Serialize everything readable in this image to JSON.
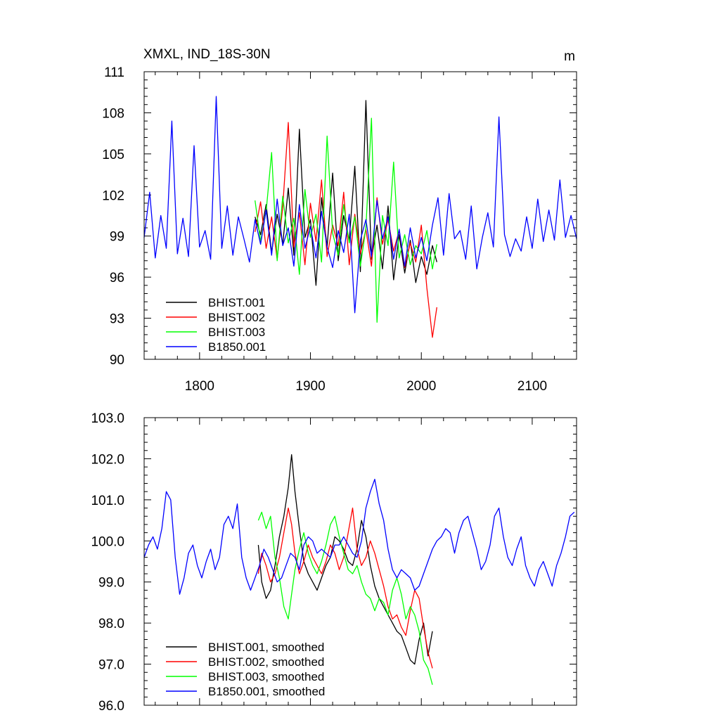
{
  "chart_data": [
    {
      "type": "line",
      "title": "XMXL, IND_18S-30N",
      "units": "m",
      "xlim": [
        1750,
        2140
      ],
      "ylim": [
        90,
        111
      ],
      "xticks": [
        1800,
        1900,
        2000,
        2100
      ],
      "xtick_labels": [
        "1800",
        "1900",
        "2000",
        "2100"
      ],
      "yticks": [
        90,
        93,
        96,
        99,
        102,
        105,
        108,
        111
      ],
      "ytick_labels": [
        "90",
        "93",
        "96",
        "99",
        "102",
        "105",
        "108",
        "111"
      ],
      "legend": {
        "placement": "bottom-left"
      },
      "series": [
        {
          "name": "BHIST.001",
          "color": "#000000",
          "x": [
            1850,
            1855,
            1860,
            1865,
            1870,
            1875,
            1880,
            1885,
            1890,
            1895,
            1900,
            1905,
            1910,
            1915,
            1920,
            1925,
            1930,
            1935,
            1940,
            1945,
            1950,
            1955,
            1960,
            1965,
            1970,
            1975,
            1980,
            1985,
            1990,
            1995,
            2000,
            2005,
            2010,
            2014
          ],
          "y": [
            100.4,
            99.1,
            101.3,
            97.8,
            100.6,
            98.4,
            102.5,
            97.6,
            106.8,
            98.9,
            100.2,
            95.4,
            101.8,
            98.2,
            103.6,
            97.2,
            100.5,
            98.7,
            104.1,
            96.4,
            108.9,
            97.3,
            99.8,
            96.6,
            101.2,
            95.8,
            99.1,
            96.3,
            98.7,
            95.6,
            97.5,
            96.2,
            98.3,
            97.1
          ]
        },
        {
          "name": "BHIST.002",
          "color": "#ff0000",
          "x": [
            1850,
            1855,
            1860,
            1865,
            1870,
            1875,
            1880,
            1885,
            1890,
            1895,
            1900,
            1905,
            1910,
            1915,
            1920,
            1925,
            1930,
            1935,
            1940,
            1945,
            1950,
            1955,
            1960,
            1965,
            1970,
            1975,
            1980,
            1985,
            1990,
            1995,
            2000,
            2005,
            2010,
            2014
          ],
          "y": [
            99.3,
            101.5,
            98.1,
            100.4,
            97.3,
            101.1,
            107.3,
            98.2,
            100.7,
            96.9,
            101.4,
            98.6,
            103.1,
            97.5,
            99.8,
            98.3,
            102.2,
            96.9,
            100.6,
            97.7,
            99.5,
            96.8,
            101.8,
            98.4,
            100.2,
            97.9,
            99.4,
            96.7,
            98.5,
            97.1,
            99.8,
            95.2,
            91.6,
            93.8
          ]
        },
        {
          "name": "BHIST.003",
          "color": "#00ff00",
          "x": [
            1850,
            1855,
            1860,
            1865,
            1870,
            1875,
            1880,
            1885,
            1890,
            1895,
            1900,
            1905,
            1910,
            1915,
            1920,
            1925,
            1930,
            1935,
            1940,
            1945,
            1950,
            1955,
            1960,
            1965,
            1970,
            1975,
            1980,
            1985,
            1990,
            1995,
            2000,
            2005,
            2010,
            2014
          ],
          "y": [
            101.6,
            98.6,
            100.8,
            105.1,
            97.2,
            101.9,
            98.5,
            100.3,
            96.2,
            102.4,
            98.9,
            100.6,
            97.1,
            106.3,
            99.2,
            97.6,
            101.3,
            98.5,
            100.4,
            96.8,
            99.6,
            107.6,
            92.7,
            100.5,
            98.3,
            104.4,
            97.4,
            99.1,
            96.9,
            98.3,
            97.7,
            99.4,
            96.6,
            98.4
          ]
        },
        {
          "name": "B1850.001",
          "color": "#0000ff",
          "x": [
            1750,
            1755,
            1760,
            1765,
            1770,
            1775,
            1780,
            1785,
            1790,
            1795,
            1800,
            1805,
            1810,
            1815,
            1820,
            1825,
            1830,
            1835,
            1840,
            1845,
            1850,
            1855,
            1860,
            1865,
            1870,
            1875,
            1880,
            1885,
            1890,
            1895,
            1900,
            1905,
            1910,
            1915,
            1920,
            1925,
            1930,
            1935,
            1940,
            1945,
            1950,
            1955,
            1960,
            1965,
            1970,
            1975,
            1980,
            1985,
            1990,
            1995,
            2000,
            2005,
            2010,
            2015,
            2020,
            2025,
            2030,
            2035,
            2040,
            2045,
            2050,
            2055,
            2060,
            2065,
            2070,
            2075,
            2080,
            2085,
            2090,
            2095,
            2100,
            2105,
            2110,
            2115,
            2120,
            2125,
            2130,
            2135,
            2140
          ],
          "y": [
            98.9,
            102.2,
            97.4,
            100.5,
            98.1,
            107.4,
            97.7,
            100.3,
            97.5,
            105.6,
            98.2,
            99.4,
            97.3,
            109.2,
            98.1,
            101.2,
            97.6,
            100.4,
            98.8,
            97.1,
            100.2,
            98.4,
            100.9,
            97.6,
            101.7,
            98.3,
            99.6,
            96.8,
            101.3,
            98.1,
            99.7,
            97.4,
            100.8,
            98.2,
            96.7,
            99.4,
            97.8,
            100.6,
            93.4,
            98.7,
            100.2,
            97.5,
            101.6,
            98.8,
            100.4,
            97.3,
            99.5,
            96.8,
            99.6,
            97.4,
            98.9,
            97.2,
            99.8,
            101.8,
            97.6,
            102.1,
            98.8,
            99.4,
            97.3,
            101.2,
            96.6,
            98.9,
            100.7,
            98.2,
            107.7,
            99.1,
            97.5,
            98.8,
            97.9,
            100.4,
            98.1,
            101.7,
            98.6,
            100.9,
            98.7,
            103.1,
            98.9,
            100.5,
            98.8
          ]
        }
      ]
    },
    {
      "type": "line",
      "title": "",
      "xlim": [
        1750,
        2140
      ],
      "ylim": [
        96,
        103
      ],
      "xticks": [
        1800,
        1900,
        2000,
        2100
      ],
      "yticks": [
        96,
        97,
        98,
        99,
        100,
        101,
        102,
        103
      ],
      "ytick_labels": [
        "96.0",
        "97.0",
        "98.0",
        "99.0",
        "100.0",
        "101.0",
        "102.0",
        "103.0"
      ],
      "legend": {
        "placement": "bottom-left"
      },
      "series": [
        {
          "name": "BHIST.001, smoothed",
          "color": "#000000",
          "x": [
            1853,
            1856,
            1860,
            1864,
            1868,
            1872,
            1876,
            1880,
            1883,
            1886,
            1890,
            1894,
            1898,
            1902,
            1906,
            1910,
            1914,
            1918,
            1922,
            1926,
            1930,
            1934,
            1938,
            1942,
            1946,
            1950,
            1954,
            1958,
            1962,
            1966,
            1970,
            1974,
            1978,
            1982,
            1986,
            1990,
            1994,
            1998,
            2002,
            2006,
            2010
          ],
          "y": [
            99.9,
            99.0,
            98.6,
            98.8,
            99.4,
            100.1,
            100.6,
            101.3,
            102.1,
            101.2,
            100.3,
            99.5,
            99.2,
            99.0,
            98.8,
            99.1,
            99.4,
            99.6,
            100.1,
            100.0,
            99.8,
            99.5,
            99.4,
            99.8,
            100.5,
            100.1,
            99.4,
            98.9,
            98.6,
            98.4,
            98.2,
            98.0,
            97.8,
            97.7,
            97.4,
            97.1,
            97.0,
            97.6,
            98.0,
            97.2,
            97.8
          ]
        },
        {
          "name": "BHIST.002, smoothed",
          "color": "#ff0000",
          "x": [
            1853,
            1856,
            1860,
            1864,
            1868,
            1872,
            1876,
            1880,
            1883,
            1886,
            1890,
            1894,
            1898,
            1902,
            1906,
            1910,
            1914,
            1918,
            1922,
            1926,
            1930,
            1934,
            1938,
            1942,
            1946,
            1950,
            1954,
            1958,
            1962,
            1966,
            1970,
            1974,
            1978,
            1982,
            1986,
            1990,
            1994,
            1998,
            2002,
            2006,
            2010
          ],
          "y": [
            99.2,
            99.7,
            99.4,
            99.0,
            99.2,
            99.6,
            100.2,
            100.8,
            100.4,
            99.7,
            99.2,
            99.5,
            99.9,
            99.6,
            99.4,
            99.2,
            99.5,
            99.9,
            99.7,
            99.3,
            99.6,
            100.2,
            100.8,
            99.8,
            99.4,
            99.6,
            100.0,
            99.7,
            99.3,
            98.9,
            98.4,
            98.1,
            98.2,
            97.9,
            97.7,
            98.3,
            98.8,
            98.6,
            97.9,
            97.3,
            96.9
          ]
        },
        {
          "name": "BHIST.003, smoothed",
          "color": "#00ff00",
          "x": [
            1853,
            1856,
            1860,
            1864,
            1868,
            1872,
            1876,
            1880,
            1883,
            1886,
            1890,
            1894,
            1898,
            1902,
            1906,
            1910,
            1914,
            1918,
            1922,
            1926,
            1930,
            1934,
            1938,
            1942,
            1946,
            1950,
            1954,
            1958,
            1962,
            1966,
            1970,
            1974,
            1978,
            1982,
            1986,
            1990,
            1994,
            1998,
            2002,
            2006,
            2010
          ],
          "y": [
            100.5,
            100.7,
            100.3,
            100.6,
            99.6,
            99.1,
            98.4,
            98.1,
            98.7,
            99.3,
            99.8,
            100.2,
            99.7,
            99.4,
            99.2,
            99.5,
            99.9,
            100.4,
            100.6,
            100.1,
            99.7,
            99.3,
            99.2,
            99.4,
            99.0,
            98.7,
            98.6,
            98.3,
            98.6,
            98.5,
            98.2,
            98.8,
            99.1,
            98.7,
            98.1,
            98.4,
            98.2,
            97.8,
            97.1,
            96.9,
            96.5
          ]
        },
        {
          "name": "B1850.001, smoothed",
          "color": "#0000ff",
          "x": [
            1750,
            1754,
            1758,
            1762,
            1766,
            1770,
            1774,
            1778,
            1782,
            1786,
            1790,
            1794,
            1798,
            1802,
            1806,
            1810,
            1814,
            1818,
            1822,
            1826,
            1830,
            1834,
            1838,
            1842,
            1846,
            1850,
            1854,
            1858,
            1862,
            1866,
            1870,
            1874,
            1878,
            1882,
            1886,
            1890,
            1894,
            1898,
            1902,
            1906,
            1910,
            1914,
            1918,
            1922,
            1926,
            1930,
            1934,
            1938,
            1942,
            1946,
            1950,
            1954,
            1958,
            1962,
            1966,
            1970,
            1974,
            1978,
            1982,
            1986,
            1990,
            1994,
            1998,
            2002,
            2006,
            2010,
            2014,
            2018,
            2022,
            2026,
            2030,
            2034,
            2038,
            2042,
            2046,
            2050,
            2054,
            2058,
            2062,
            2066,
            2070,
            2074,
            2078,
            2082,
            2086,
            2090,
            2094,
            2098,
            2102,
            2106,
            2110,
            2114,
            2118,
            2122,
            2126,
            2130,
            2134,
            2138
          ],
          "y": [
            99.6,
            99.9,
            100.1,
            99.8,
            100.3,
            101.2,
            101.0,
            99.6,
            98.7,
            99.1,
            99.7,
            99.9,
            99.4,
            99.1,
            99.5,
            99.8,
            99.3,
            99.6,
            100.4,
            100.6,
            100.3,
            100.9,
            99.6,
            99.1,
            98.8,
            99.1,
            99.4,
            99.8,
            99.6,
            99.3,
            99.0,
            99.1,
            99.4,
            99.7,
            99.6,
            99.3,
            99.9,
            100.1,
            100.0,
            99.7,
            99.8,
            99.7,
            99.6,
            99.9,
            99.9,
            100.1,
            99.9,
            99.7,
            99.6,
            100.0,
            100.8,
            101.2,
            101.5,
            100.9,
            100.5,
            99.8,
            99.3,
            99.1,
            99.3,
            99.2,
            99.1,
            98.8,
            98.9,
            99.2,
            99.5,
            99.8,
            100.0,
            100.1,
            100.3,
            100.2,
            99.7,
            100.2,
            100.5,
            100.6,
            100.2,
            99.8,
            99.3,
            99.5,
            99.9,
            100.6,
            100.8,
            100.1,
            99.6,
            99.4,
            99.8,
            100.1,
            99.4,
            99.1,
            98.9,
            99.3,
            99.5,
            99.2,
            98.9,
            99.4,
            99.7,
            100.1,
            100.6,
            100.7
          ]
        }
      ]
    }
  ]
}
